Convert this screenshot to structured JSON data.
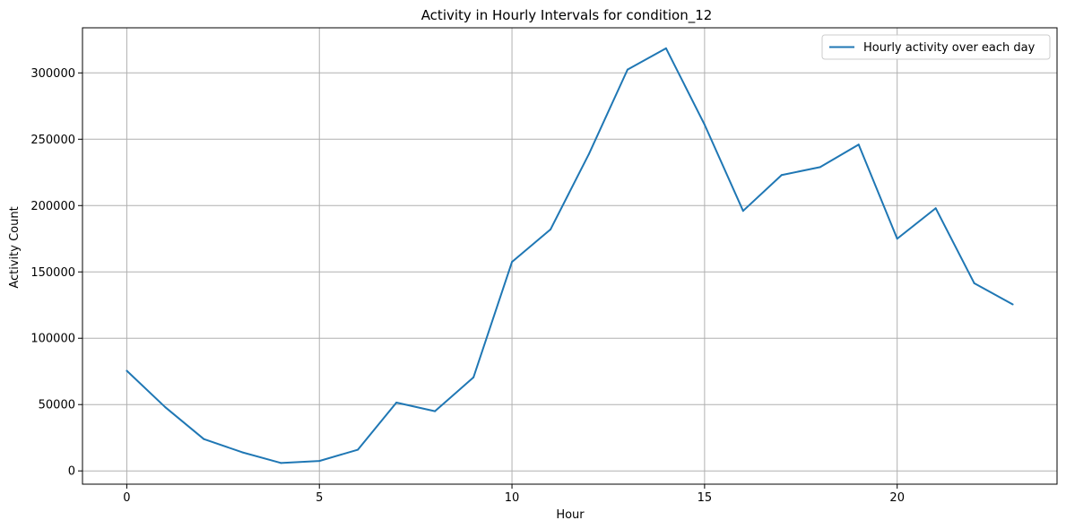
{
  "chart_data": {
    "type": "line",
    "title": "Activity in Hourly Intervals for condition_12",
    "xlabel": "Hour",
    "ylabel": "Activity Count",
    "xlim": [
      -1.15,
      24.15
    ],
    "ylim": [
      -10000,
      334000
    ],
    "xticks": [
      0,
      5,
      10,
      15,
      20
    ],
    "xtick_labels": [
      "0",
      "5",
      "10",
      "15",
      "20"
    ],
    "yticks": [
      0,
      50000,
      100000,
      150000,
      200000,
      250000,
      300000
    ],
    "ytick_labels": [
      "0",
      "50000",
      "100000",
      "150000",
      "200000",
      "250000",
      "300000"
    ],
    "grid": true,
    "legend_position": "top-right",
    "series": [
      {
        "name": "Hourly activity over each day",
        "color": "#1f77b4",
        "x": [
          0,
          1,
          2,
          3,
          4,
          5,
          6,
          7,
          8,
          9,
          10,
          11,
          12,
          13,
          14,
          15,
          16,
          17,
          18,
          19,
          20,
          21,
          22,
          23
        ],
        "y": [
          75500,
          48000,
          24000,
          14000,
          6000,
          7500,
          16000,
          51500,
          45000,
          70500,
          157500,
          182000,
          239000,
          302500,
          318500,
          261000,
          196000,
          223000,
          229000,
          246000,
          175000,
          198000,
          141500,
          125500
        ]
      }
    ]
  }
}
